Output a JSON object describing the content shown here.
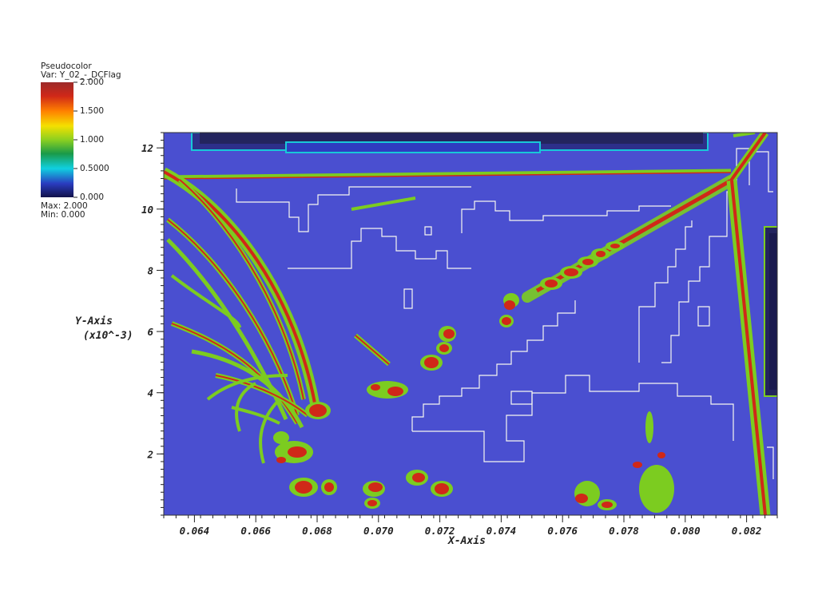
{
  "legend": {
    "title": "Pseudocolor",
    "var_line": "Var: Y_02_-_DCFlag",
    "max_line": "Max:  2.000",
    "min_line": "Min:  0.000",
    "ticks": [
      "2.000",
      "1.500",
      "1.000",
      "0.5000",
      "0.000"
    ]
  },
  "chart_data": {
    "type": "heatmap",
    "title": "",
    "variable": "Y_02_-_DCFlag",
    "xlabel": "X-Axis",
    "ylabel": "Y-Axis",
    "ylabel_scale": "(x10^-3)",
    "xlim": [
      0.063,
      0.083
    ],
    "ylim": [
      0.0,
      12.5
    ],
    "x_ticks": [
      "0.064",
      "0.066",
      "0.068",
      "0.070",
      "0.072",
      "0.074",
      "0.076",
      "0.078",
      "0.080",
      "0.082"
    ],
    "x_tick_values": [
      0.064,
      0.066,
      0.068,
      0.07,
      0.072,
      0.074,
      0.076,
      0.078,
      0.08,
      0.082
    ],
    "y_ticks": [
      "2",
      "4",
      "6",
      "8",
      "10",
      "12"
    ],
    "y_tick_values": [
      2,
      4,
      6,
      8,
      10,
      12
    ],
    "value_range": [
      0.0,
      2.0
    ],
    "colormap": [
      "#1a1a6e",
      "#2c3fbf",
      "#18c8d8",
      "#1aa050",
      "#7ccc20",
      "#f2e000",
      "#ff8a00",
      "#d02818",
      "#7a1010"
    ],
    "background_color": "#4a4fd0"
  }
}
